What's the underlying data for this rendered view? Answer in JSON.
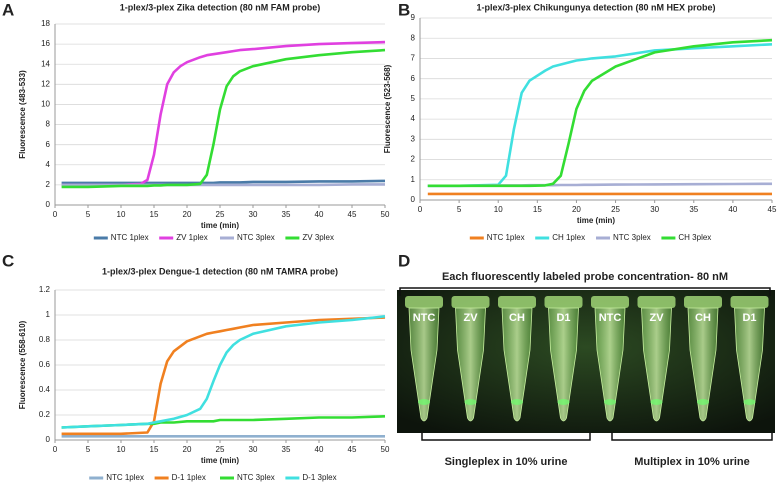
{
  "chart_data": [
    {
      "type": "line",
      "panel": "A",
      "title": "1-plex/3-plex Zika detection (80 nM FAM probe)",
      "x_label": "time (min)",
      "y_label": "Fluorescence (483-533)",
      "x": [
        1,
        5,
        10,
        13,
        14,
        15,
        16,
        17,
        18,
        19,
        20,
        22,
        23,
        24,
        25,
        26,
        27,
        28,
        30,
        35,
        40,
        45,
        50
      ],
      "series": [
        {
          "name": "NTC 1plex",
          "color": "#4a7ba8",
          "values": [
            2.2,
            2.2,
            2.2,
            2.2,
            2.2,
            2.2,
            2.2,
            2.2,
            2.2,
            2.2,
            2.2,
            2.2,
            2.2,
            2.2,
            2.25,
            2.25,
            2.25,
            2.25,
            2.3,
            2.3,
            2.35,
            2.35,
            2.4
          ]
        },
        {
          "name": "ZV 1plex",
          "color": "#e040e0",
          "values": [
            2.0,
            2.0,
            2.0,
            2.1,
            2.5,
            5,
            9,
            12,
            13.2,
            13.8,
            14.2,
            14.7,
            14.9,
            15.0,
            15.1,
            15.2,
            15.3,
            15.4,
            15.5,
            15.8,
            16.0,
            16.1,
            16.2
          ]
        },
        {
          "name": "NTC 3plex",
          "color": "#a7aed4",
          "values": [
            2.0,
            2.0,
            2.0,
            2.0,
            2.0,
            2.0,
            2.0,
            2.0,
            2.0,
            2.0,
            2.0,
            2.0,
            2.0,
            2.0,
            2.0,
            2.0,
            2.0,
            2.0,
            2.0,
            2.0,
            2.0,
            2.05,
            2.05
          ]
        },
        {
          "name": "ZV 3plex",
          "color": "#33dd33",
          "values": [
            1.8,
            1.8,
            1.9,
            1.9,
            1.9,
            1.95,
            1.95,
            2.0,
            2.0,
            2.0,
            2.0,
            2.1,
            3,
            6,
            9.5,
            11.8,
            12.8,
            13.3,
            13.8,
            14.5,
            14.9,
            15.2,
            15.4
          ]
        }
      ],
      "xlim": [
        0,
        50
      ],
      "ylim": [
        0,
        18
      ],
      "xticks": [
        0,
        5,
        10,
        15,
        20,
        25,
        30,
        35,
        40,
        45,
        50
      ],
      "yticks": [
        0,
        2,
        4,
        6,
        8,
        10,
        12,
        14,
        16,
        18
      ],
      "grid": true,
      "legend": "bottom"
    },
    {
      "type": "line",
      "panel": "B",
      "title": "1-plex/3-plex Chikungunya detection (80 nM HEX probe)",
      "x_label": "time (min)",
      "y_label": "Fluorescence (523-568)",
      "x": [
        1,
        5,
        10,
        11,
        12,
        13,
        14,
        16,
        17,
        18,
        19,
        20,
        21,
        22,
        25,
        30,
        35,
        40,
        45
      ],
      "series": [
        {
          "name": "NTC 1plex",
          "color": "#f08020",
          "values": [
            0.3,
            0.3,
            0.3,
            0.3,
            0.3,
            0.3,
            0.3,
            0.3,
            0.3,
            0.3,
            0.3,
            0.3,
            0.3,
            0.3,
            0.3,
            0.3,
            0.3,
            0.3,
            0.3
          ]
        },
        {
          "name": "CH 1plex",
          "color": "#40e0e0",
          "values": [
            0.7,
            0.7,
            0.75,
            1.2,
            3.5,
            5.3,
            5.9,
            6.4,
            6.6,
            6.7,
            6.8,
            6.9,
            6.95,
            7.0,
            7.1,
            7.4,
            7.5,
            7.6,
            7.7
          ]
        },
        {
          "name": "NTC 3plex",
          "color": "#a7aed4",
          "values": [
            0.7,
            0.7,
            0.72,
            0.72,
            0.72,
            0.72,
            0.73,
            0.73,
            0.73,
            0.74,
            0.74,
            0.74,
            0.75,
            0.75,
            0.76,
            0.77,
            0.78,
            0.79,
            0.8
          ]
        },
        {
          "name": "CH 3plex",
          "color": "#33dd33",
          "values": [
            0.7,
            0.7,
            0.7,
            0.7,
            0.7,
            0.7,
            0.7,
            0.72,
            0.8,
            1.2,
            2.8,
            4.5,
            5.4,
            5.9,
            6.6,
            7.3,
            7.6,
            7.8,
            7.9
          ]
        }
      ],
      "xlim": [
        0,
        45
      ],
      "ylim": [
        0,
        9
      ],
      "xticks": [
        0,
        5,
        10,
        15,
        20,
        25,
        30,
        35,
        40,
        45
      ],
      "yticks": [
        0,
        1,
        2,
        3,
        4,
        5,
        6,
        7,
        8,
        9
      ],
      "grid": true,
      "legend": "bottom"
    },
    {
      "type": "line",
      "panel": "C",
      "title": "1-plex/3-plex Dengue-1 detection (80 nM TAMRA probe)",
      "x_label": "time (min)",
      "y_label": "Fluorescence (558-610)",
      "x": [
        1,
        5,
        10,
        14,
        15,
        16,
        17,
        18,
        20,
        22,
        23,
        24,
        25,
        26,
        27,
        28,
        30,
        35,
        40,
        45,
        50
      ],
      "series": [
        {
          "name": "NTC 1plex",
          "color": "#8fb0cf",
          "values": [
            0.03,
            0.03,
            0.03,
            0.03,
            0.03,
            0.03,
            0.03,
            0.03,
            0.03,
            0.03,
            0.03,
            0.03,
            0.03,
            0.03,
            0.03,
            0.03,
            0.03,
            0.03,
            0.03,
            0.03,
            0.03
          ]
        },
        {
          "name": "D-1 1plex",
          "color": "#f08020",
          "values": [
            0.05,
            0.05,
            0.05,
            0.06,
            0.15,
            0.45,
            0.63,
            0.71,
            0.79,
            0.83,
            0.85,
            0.86,
            0.87,
            0.88,
            0.89,
            0.9,
            0.92,
            0.94,
            0.96,
            0.97,
            0.98
          ]
        },
        {
          "name": "NTC 3plex",
          "color": "#33dd33",
          "values": [
            0.1,
            0.11,
            0.12,
            0.13,
            0.13,
            0.14,
            0.14,
            0.14,
            0.15,
            0.15,
            0.15,
            0.15,
            0.16,
            0.16,
            0.16,
            0.16,
            0.16,
            0.17,
            0.18,
            0.18,
            0.19
          ]
        },
        {
          "name": "D-1 3plex",
          "color": "#40e0e0",
          "values": [
            0.1,
            0.11,
            0.12,
            0.13,
            0.14,
            0.15,
            0.16,
            0.17,
            0.2,
            0.25,
            0.33,
            0.47,
            0.6,
            0.7,
            0.76,
            0.8,
            0.85,
            0.91,
            0.94,
            0.96,
            0.99
          ]
        }
      ],
      "xlim": [
        0,
        50
      ],
      "ylim": [
        0,
        1.2
      ],
      "xticks": [
        0,
        5,
        10,
        15,
        20,
        25,
        30,
        35,
        40,
        45,
        50
      ],
      "yticks": [
        0,
        0.2,
        0.4,
        0.6,
        0.8,
        1,
        1.2
      ],
      "grid": true,
      "legend": "bottom"
    }
  ],
  "photo": {
    "panel": "D",
    "title": "Each fluorescently labeled probe concentration- 80 nM",
    "tube_labels": [
      "NTC",
      "ZV",
      "CH",
      "D1",
      "NTC",
      "ZV",
      "CH",
      "D1"
    ],
    "groups": [
      "Singleplex in 10% urine",
      "Multiplex in 10% urine"
    ]
  }
}
